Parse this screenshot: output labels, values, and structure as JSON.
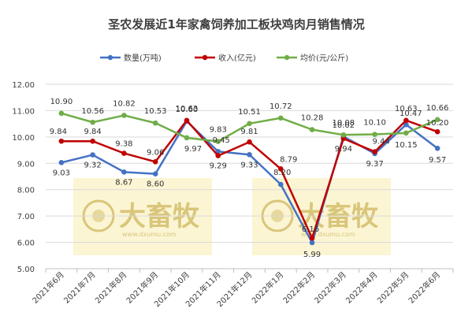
{
  "chart_data": {
    "type": "line",
    "title": "圣农发展近1年家禽饲养加工板块鸡肉月销售情况",
    "categories": [
      "2021年6月",
      "2021年7月",
      "2021年8月",
      "2021年9月",
      "2021年10月",
      "2021年11月",
      "2021年12月",
      "2022年1月",
      "2022年2月",
      "2022年3月",
      "2022年4月",
      "2022年5月",
      "2022年6月"
    ],
    "ylim": [
      5.0,
      12.0
    ],
    "yticks": [
      "5.00",
      "6.00",
      "7.00",
      "8.00",
      "9.00",
      "10.00",
      "11.00",
      "12.00"
    ],
    "grid": true,
    "legend_position": "top",
    "series": [
      {
        "name": "数量(万吨)",
        "color": "#4472c4",
        "values": [
          9.03,
          9.32,
          8.67,
          8.6,
          10.6,
          9.45,
          9.33,
          8.2,
          5.99,
          10.02,
          9.37,
          10.47,
          9.57
        ]
      },
      {
        "name": "收入(亿元)",
        "color": "#c00000",
        "values": [
          9.84,
          9.84,
          9.38,
          9.06,
          10.63,
          9.29,
          9.81,
          8.79,
          6.16,
          9.94,
          9.44,
          10.63,
          10.2
        ]
      },
      {
        "name": "均价(元/公斤)",
        "color": "#70ad47",
        "values": [
          10.9,
          10.56,
          10.82,
          10.53,
          9.97,
          9.83,
          10.51,
          10.72,
          10.28,
          10.08,
          10.1,
          10.15,
          10.66
        ]
      }
    ],
    "watermark": {
      "brand": "大畜牧",
      "site": "www.dxumu.com"
    }
  }
}
